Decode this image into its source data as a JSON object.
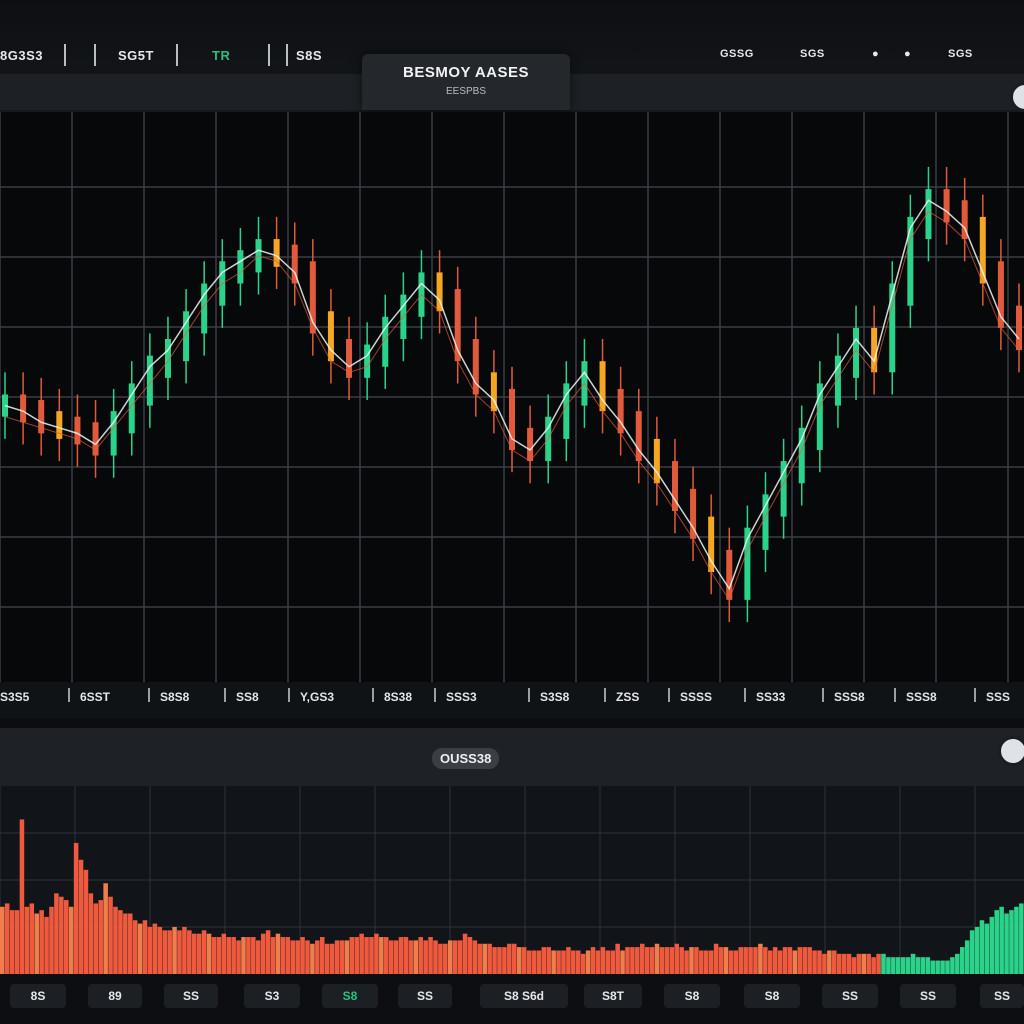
{
  "top_bar": {
    "items": [
      {
        "label": "8G3S3",
        "color": "#e7e9ec"
      },
      {
        "label": "SG5T",
        "color": "#e7e9ec"
      },
      {
        "label": "TR",
        "color": "#27c07a"
      },
      {
        "label": "S8S",
        "color": "#e7e9ec"
      }
    ],
    "right_items": [
      "GSSG",
      "SGS",
      "●",
      "●",
      "SGS"
    ],
    "title": "BESMOY AASES",
    "subtitle": "EESPBS"
  },
  "x_axis_labels": [
    "S3S5",
    "6SST",
    "S8S8",
    "SS8",
    "Y,GS3",
    "8S38",
    "SSS3",
    "S3S8",
    "ZSS",
    "SSSS",
    "SS33",
    "SSS8",
    "SSS8",
    "SSS"
  ],
  "volume_title": "OUSS38",
  "bottom_labels": [
    "8S",
    "89",
    "SS",
    "S3",
    "S8",
    "SS",
    "S8 S6d",
    "S8T",
    "S8",
    "S8",
    "SS",
    "SS",
    "SS"
  ],
  "colors": {
    "background": "#0b0d10",
    "up": "#2bd38a",
    "down": "#e25a3c",
    "accent": "#f5a623",
    "grid": "#3a3f46",
    "volume": "#ef5a3f"
  },
  "chart_data": [
    {
      "type": "line",
      "title": "BESMOY AASES",
      "xlabel": "",
      "ylabel": "",
      "ylim": [
        0,
        100
      ],
      "grid": true,
      "series": [
        {
          "values": [
            48,
            47,
            45,
            44,
            43,
            41,
            45,
            50,
            55,
            58,
            63,
            68,
            72,
            74,
            76,
            75,
            72,
            63,
            58,
            55,
            57,
            62,
            66,
            70,
            67,
            58,
            52,
            49,
            42,
            40,
            44,
            50,
            54,
            49,
            45,
            40,
            36,
            31,
            26,
            20,
            15,
            24,
            30,
            36,
            42,
            50,
            55,
            60,
            56,
            68,
            80,
            85,
            83,
            80,
            72,
            64,
            60
          ]
        },
        {
          "values": [
            46,
            45,
            44,
            43,
            42,
            40,
            44,
            48,
            52,
            56,
            61,
            66,
            70,
            72,
            75,
            74,
            70,
            62,
            56,
            54,
            55,
            60,
            64,
            68,
            65,
            56,
            50,
            47,
            40,
            38,
            42,
            48,
            52,
            47,
            43,
            38,
            34,
            29,
            24,
            18,
            13,
            22,
            28,
            34,
            40,
            48,
            53,
            58,
            54,
            66,
            78,
            83,
            81,
            78,
            70,
            62,
            58
          ]
        }
      ]
    },
    {
      "type": "bar",
      "title": "OUSS38",
      "xlabel": "",
      "ylabel": "",
      "ylim": [
        0,
        100
      ],
      "values": [
        40,
        42,
        38,
        38,
        92,
        40,
        42,
        36,
        38,
        34,
        40,
        48,
        46,
        44,
        40,
        78,
        68,
        62,
        48,
        42,
        44,
        54,
        46,
        40,
        38,
        36,
        36,
        32,
        30,
        32,
        28,
        30,
        28,
        26,
        26,
        28,
        26,
        28,
        26,
        24,
        24,
        26,
        24,
        22,
        22,
        24,
        22,
        22,
        20,
        22,
        22,
        22,
        20,
        24,
        26,
        22,
        24,
        22,
        22,
        20,
        20,
        22,
        20,
        18,
        20,
        22,
        18,
        18,
        20,
        20,
        20,
        22,
        22,
        24,
        22,
        22,
        24,
        22,
        22,
        20,
        20,
        22,
        22,
        20,
        20,
        22,
        20,
        22,
        20,
        18,
        18,
        20,
        20,
        20,
        24,
        22,
        20,
        18,
        18,
        18,
        16,
        16,
        16,
        18,
        18,
        16,
        16,
        14,
        14,
        14,
        16,
        16,
        14,
        14,
        14,
        16,
        14,
        14,
        12,
        14,
        16,
        14,
        16,
        14,
        14,
        18,
        14,
        16,
        16,
        16,
        18,
        16,
        16,
        18,
        16,
        16,
        16,
        18,
        16,
        14,
        16,
        16,
        14,
        14,
        14,
        18,
        16,
        16,
        14,
        14,
        16,
        16,
        16,
        16,
        18,
        16,
        14,
        16,
        14,
        16,
        16,
        14,
        16,
        16,
        16,
        14,
        14,
        12,
        14,
        14,
        12,
        12,
        12,
        10,
        12,
        12,
        12,
        10,
        12,
        12,
        10,
        10,
        10,
        10,
        10,
        12,
        10,
        10,
        10,
        8,
        8,
        8,
        8,
        10,
        12,
        16,
        20,
        26,
        28,
        32,
        30,
        34,
        38,
        40,
        36,
        38,
        40,
        42
      ],
      "bar_colors": "red for first ~85%, green for last ~15%"
    }
  ]
}
